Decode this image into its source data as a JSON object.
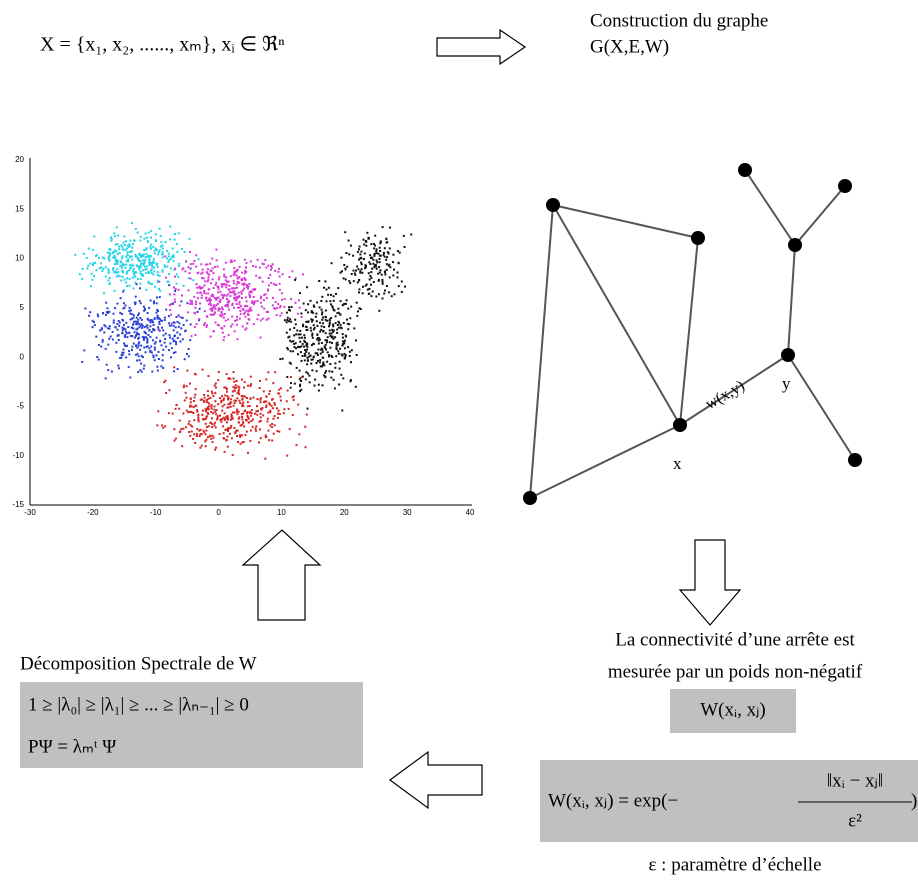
{
  "header": {
    "formula": "X = {x₁, x₂, ......, xₘ},  xᵢ ∈ ℜⁿ",
    "construction_line1": "Construction du graphe",
    "construction_line2": "G(X,E,W)"
  },
  "scatter": {
    "xticks": [
      "-30",
      "-20",
      "-10",
      "0",
      "10",
      "20",
      "30",
      "40"
    ],
    "yticks": [
      "20",
      "15",
      "10",
      "5",
      "0",
      "-5",
      "-10",
      "-15"
    ]
  },
  "graph": {
    "edge_label": "w(x,y)",
    "node_x": "x",
    "node_y": "y"
  },
  "spectral": {
    "title": "Décomposition Spectrale de W",
    "inequality": "1 ≥ |λ₀| ≥ |λ₁| ≥ ... ≥ |λₙ₋₁| ≥ 0",
    "eigen": "PΨ = λₘᵗ Ψ"
  },
  "weight": {
    "line1": "La connectivité d’une arrête est",
    "line2": "mesurée par un poids non-négatif",
    "symbol": "W(xᵢ, xⱼ)",
    "formula_left": "W(xᵢ, xⱼ) = exp(−",
    "numerator": "‖xᵢ − xⱼ‖",
    "denominator": "ε²",
    "formula_right": ")",
    "scale_note": "ε : paramètre d’échelle"
  }
}
